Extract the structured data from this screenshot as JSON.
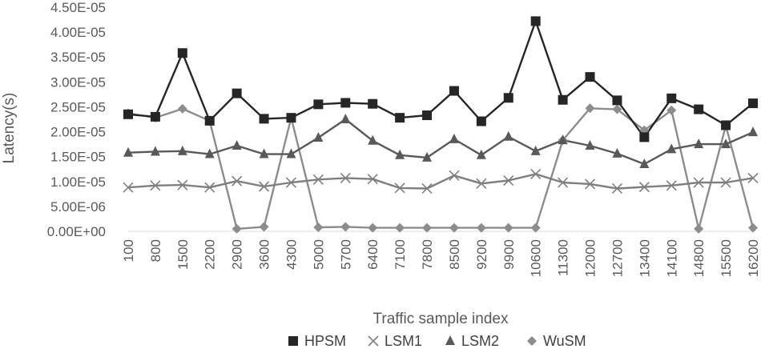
{
  "chart_data": {
    "type": "line",
    "title": "",
    "xlabel": "Traffic sample index",
    "ylabel": "Latency(s)",
    "ylim": [
      0,
      4.5e-05
    ],
    "y_ticks": [
      "0.00E+00",
      "5.00E-06",
      "1.00E-05",
      "1.50E-05",
      "2.00E-05",
      "2.50E-05",
      "3.00E-05",
      "3.50E-05",
      "4.00E-05",
      "4.50E-05"
    ],
    "x_ticks": [
      "100",
      "800",
      "1500",
      "2200",
      "2900",
      "3600",
      "4300",
      "5000",
      "5700",
      "6400",
      "7100",
      "7800",
      "8500",
      "9200",
      "9900",
      "10600",
      "11300",
      "12000",
      "12700",
      "13400",
      "14100",
      "14800",
      "15500",
      "16200"
    ],
    "grid": false,
    "legend_position": "bottom",
    "x": [
      100,
      800,
      1500,
      2200,
      2900,
      3600,
      4300,
      5000,
      5700,
      6400,
      7100,
      7800,
      8500,
      9200,
      9900,
      10600,
      11300,
      12000,
      12700,
      13400,
      14100,
      14800,
      15500,
      16200
    ],
    "series": [
      {
        "name": "HPSM",
        "marker": "square",
        "color": "#262626",
        "values": [
          2.35e-05,
          2.3e-05,
          3.58e-05,
          2.22e-05,
          2.77e-05,
          2.26e-05,
          2.28e-05,
          2.55e-05,
          2.58e-05,
          2.56e-05,
          2.28e-05,
          2.33e-05,
          2.82e-05,
          2.21e-05,
          2.68e-05,
          4.22e-05,
          2.64e-05,
          3.1e-05,
          2.63e-05,
          1.89e-05,
          2.67e-05,
          2.45e-05,
          2.13e-05,
          2.57e-05
        ]
      },
      {
        "name": "LSM1",
        "marker": "x",
        "color": "#7f7f7f",
        "values": [
          8.8e-06,
          9.2e-06,
          9.3e-06,
          8.8e-06,
          1.01e-05,
          9e-06,
          9.8e-06,
          1.04e-05,
          1.07e-05,
          1.05e-05,
          8.7e-06,
          8.6e-06,
          1.12e-05,
          9.6e-06,
          1.02e-05,
          1.15e-05,
          9.8e-06,
          9.5e-06,
          8.6e-06,
          8.9e-06,
          9.2e-06,
          9.8e-06,
          9.8e-06,
          1.07e-05
        ]
      },
      {
        "name": "LSM2",
        "marker": "triangle",
        "color": "#595959",
        "values": [
          1.58e-05,
          1.6e-05,
          1.61e-05,
          1.55e-05,
          1.72e-05,
          1.55e-05,
          1.55e-05,
          1.88e-05,
          2.25e-05,
          1.82e-05,
          1.53e-05,
          1.48e-05,
          1.85e-05,
          1.53e-05,
          1.9e-05,
          1.61e-05,
          1.83e-05,
          1.72e-05,
          1.56e-05,
          1.35e-05,
          1.65e-05,
          1.75e-05,
          1.75e-05,
          1.99e-05
        ]
      },
      {
        "name": "WuSM",
        "marker": "diamond",
        "color": "#8c8c8c",
        "values": [
          2.37e-05,
          2.28e-05,
          2.46e-05,
          2.22e-05,
          5e-07,
          9e-07,
          2.28e-05,
          8e-07,
          9e-07,
          7e-07,
          7e-07,
          7e-07,
          7e-07,
          7e-07,
          7e-07,
          7e-07,
          1.83e-05,
          2.47e-05,
          2.45e-05,
          2.03e-05,
          2.43e-05,
          5e-07,
          2.12e-05,
          7e-07
        ]
      }
    ]
  }
}
